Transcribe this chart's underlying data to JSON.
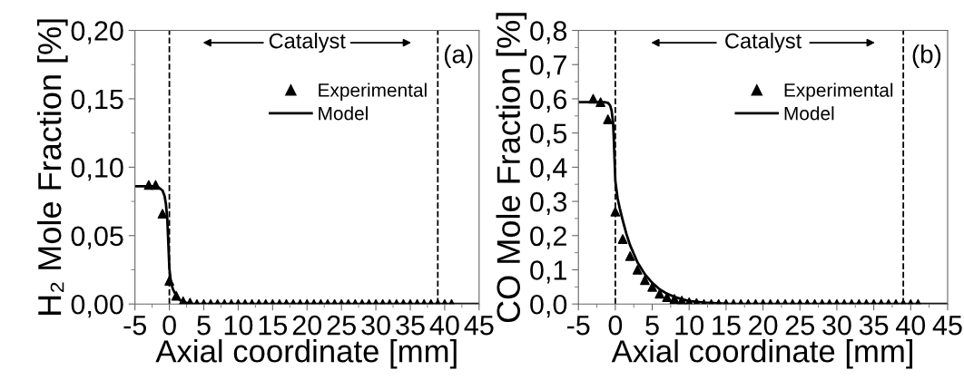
{
  "chart_data": [
    {
      "type": "scatter",
      "xlabel": "Axial coordinate [mm]",
      "ylabel": "H₂ Mole Fraction [%]",
      "xlim": [
        -5,
        45
      ],
      "xticks": [
        -5,
        0,
        5,
        10,
        15,
        20,
        25,
        30,
        35,
        40,
        45
      ],
      "ylim": [
        0,
        0.2
      ],
      "yticks": [
        {
          "value": 0,
          "label": "0,00"
        },
        {
          "value": 0.05,
          "label": "0,05"
        },
        {
          "value": 0.1,
          "label": "0,10"
        },
        {
          "value": 0.15,
          "label": "0,15"
        },
        {
          "value": 0.2,
          "label": "0,20"
        }
      ],
      "legend": "top right",
      "grid": false,
      "ref_lines": [
        {
          "axis": "x",
          "value": 0,
          "line_style": "dashed",
          "color": "#000000"
        },
        {
          "axis": "x",
          "value": 39,
          "line_style": "dashed",
          "color": "#000000"
        }
      ],
      "annotations": [
        "Catalyst",
        "(a)"
      ],
      "series": [
        {
          "name": "Experimental",
          "marker": "triangle",
          "color": "#000000",
          "x": [
            -3,
            -2,
            -1,
            0,
            1,
            2,
            3,
            4,
            5,
            6,
            7,
            8,
            9,
            10,
            11,
            12,
            13,
            14,
            15,
            16,
            17,
            18,
            19,
            20,
            21,
            22,
            23,
            24,
            25,
            26,
            27,
            28,
            29,
            30,
            31,
            32,
            33,
            34,
            35,
            36,
            37,
            38,
            39,
            40,
            41
          ],
          "values": [
            0.087,
            0.087,
            0.066,
            0.017,
            0.006,
            0.002,
            0.001,
            0,
            0,
            0,
            0,
            0,
            0,
            0,
            0,
            0,
            0,
            0,
            0,
            0,
            0,
            0,
            0,
            0,
            0,
            0,
            0,
            0,
            0,
            0,
            0,
            0,
            0,
            0,
            0,
            0,
            0,
            0,
            0,
            0,
            0,
            0,
            0,
            0,
            0
          ]
        },
        {
          "name": "Model",
          "type": "line",
          "line_style": "solid",
          "marker": "none",
          "color": "#000000",
          "x": [
            -5,
            -2,
            -1.5,
            -1,
            -0.7,
            -0.5,
            -0.3,
            -0.2,
            -0.1,
            0,
            0.2,
            0.5,
            1,
            1.5,
            2,
            3,
            45
          ],
          "values": [
            0.086,
            0.086,
            0.085,
            0.083,
            0.079,
            0.073,
            0.062,
            0.05,
            0.038,
            0.026,
            0.017,
            0.011,
            0.006,
            0.003,
            0.0015,
            0,
            0
          ]
        }
      ]
    },
    {
      "type": "scatter",
      "xlabel": "Axial coordinate [mm]",
      "ylabel": "CO Mole Fraction [%]",
      "xlim": [
        -5,
        45
      ],
      "xticks": [
        -5,
        0,
        5,
        10,
        15,
        20,
        25,
        30,
        35,
        40,
        45
      ],
      "ylim": [
        0,
        0.8
      ],
      "yticks": [
        {
          "value": 0,
          "label": "0,0"
        },
        {
          "value": 0.1,
          "label": "0,1"
        },
        {
          "value": 0.2,
          "label": "0,2"
        },
        {
          "value": 0.3,
          "label": "0,3"
        },
        {
          "value": 0.4,
          "label": "0,4"
        },
        {
          "value": 0.5,
          "label": "0,5"
        },
        {
          "value": 0.6,
          "label": "0,6"
        },
        {
          "value": 0.7,
          "label": "0,7"
        },
        {
          "value": 0.8,
          "label": "0,8"
        }
      ],
      "legend": "top right",
      "grid": false,
      "ref_lines": [
        {
          "axis": "x",
          "value": 0,
          "line_style": "dashed",
          "color": "#000000"
        },
        {
          "axis": "x",
          "value": 39,
          "line_style": "dashed",
          "color": "#000000"
        }
      ],
      "annotations": [
        "Catalyst",
        "(b)"
      ],
      "series": [
        {
          "name": "Experimental",
          "marker": "triangle",
          "color": "#000000",
          "x": [
            -3,
            -2,
            -1,
            0,
            1,
            2,
            3,
            4,
            5,
            6,
            7,
            8,
            9,
            10,
            11,
            12,
            13,
            14,
            15,
            16,
            17,
            18,
            19,
            20,
            21,
            22,
            23,
            24,
            25,
            26,
            27,
            28,
            29,
            30,
            31,
            32,
            33,
            34,
            35,
            36,
            37,
            38,
            39,
            40,
            41
          ],
          "values": [
            0.6,
            0.59,
            0.54,
            0.27,
            0.19,
            0.14,
            0.1,
            0.07,
            0.05,
            0.03,
            0.02,
            0.015,
            0.01,
            0.005,
            0.003,
            0,
            0,
            0,
            0,
            0,
            0,
            0,
            0,
            0,
            0,
            0,
            0,
            0,
            0,
            0,
            0,
            0,
            0,
            0,
            0,
            0,
            0,
            0,
            0,
            0,
            0,
            0,
            0,
            0,
            0
          ]
        },
        {
          "name": "Model",
          "type": "line",
          "line_style": "solid",
          "marker": "none",
          "color": "#000000",
          "x": [
            -5,
            -1.5,
            -1,
            -0.7,
            -0.5,
            -0.3,
            -0.2,
            -0.1,
            0,
            0.3,
            0.6,
            1,
            1.5,
            2,
            3,
            4,
            5,
            6,
            7,
            8,
            9,
            10,
            12,
            15,
            45
          ],
          "values": [
            0.59,
            0.59,
            0.588,
            0.58,
            0.565,
            0.53,
            0.48,
            0.42,
            0.36,
            0.31,
            0.28,
            0.245,
            0.205,
            0.172,
            0.122,
            0.087,
            0.062,
            0.043,
            0.03,
            0.021,
            0.014,
            0.009,
            0.004,
            0.001,
            0
          ]
        }
      ]
    }
  ]
}
